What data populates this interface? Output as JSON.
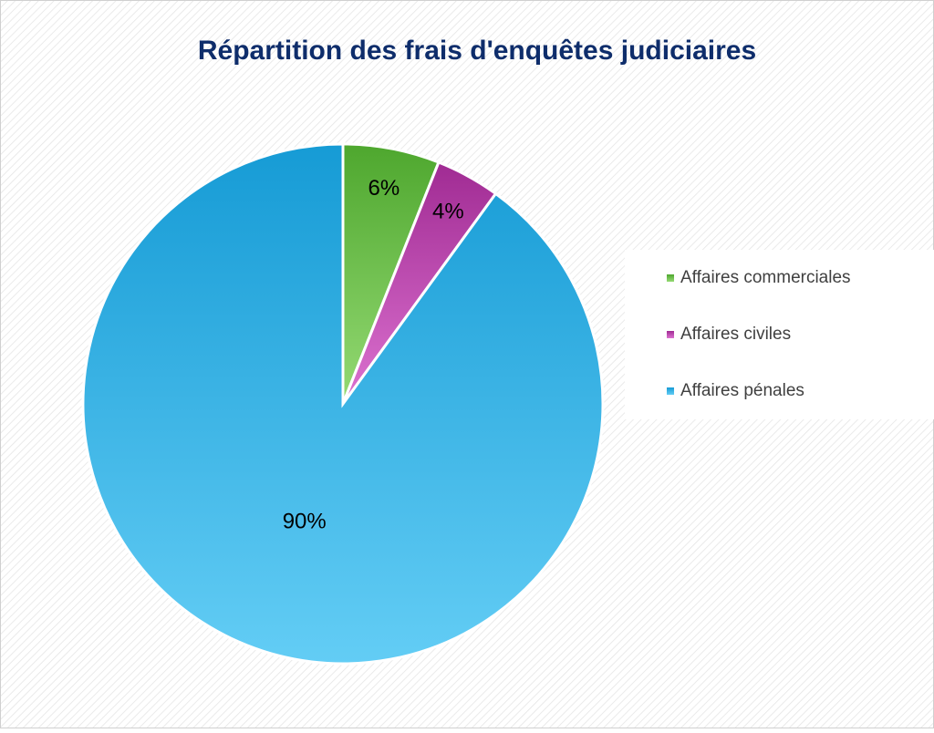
{
  "chart_data": {
    "type": "pie",
    "title": "Répartition des frais d'enquêtes judiciaires",
    "categories": [
      "Affaires commerciales",
      "Affaires civiles",
      "Affaires pénales"
    ],
    "values": [
      6,
      4,
      90
    ],
    "value_labels": [
      "6%",
      "4%",
      "90%"
    ],
    "colors": [
      "#4ea72e",
      "#a02b93",
      "#1a9ed8"
    ],
    "legend": "right"
  }
}
